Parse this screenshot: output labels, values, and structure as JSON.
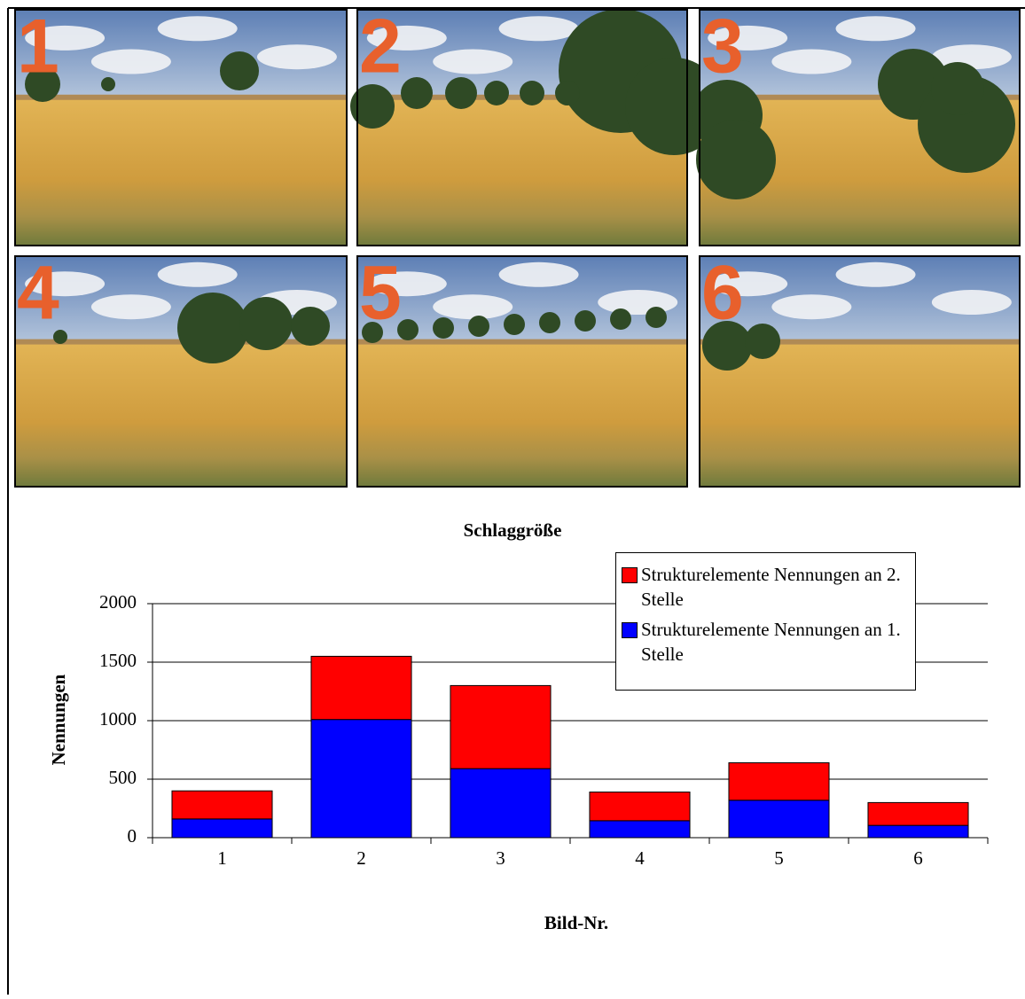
{
  "photo_labels": [
    "1",
    "2",
    "3",
    "4",
    "5",
    "6"
  ],
  "chart_data": {
    "type": "stacked_bar",
    "title": "Schlaggröße",
    "x_label": "Bild-Nr.",
    "y_label": "Nennungen",
    "categories": [
      "1",
      "2",
      "3",
      "4",
      "5",
      "6"
    ],
    "series": [
      {
        "name": "Strukturelemente Nennungen an 1. Stelle",
        "color": "#0000ff",
        "values": [
          160,
          1010,
          590,
          145,
          320,
          105
        ]
      },
      {
        "name": "Strukturelemente Nennungen an 2. Stelle",
        "color": "#ff0000",
        "values": [
          240,
          540,
          710,
          245,
          320,
          195
        ]
      }
    ],
    "ylim": [
      0,
      2000
    ],
    "yticks": [
      0,
      500,
      1000,
      1500,
      2000
    ],
    "grid": true,
    "legend": "top-right"
  }
}
